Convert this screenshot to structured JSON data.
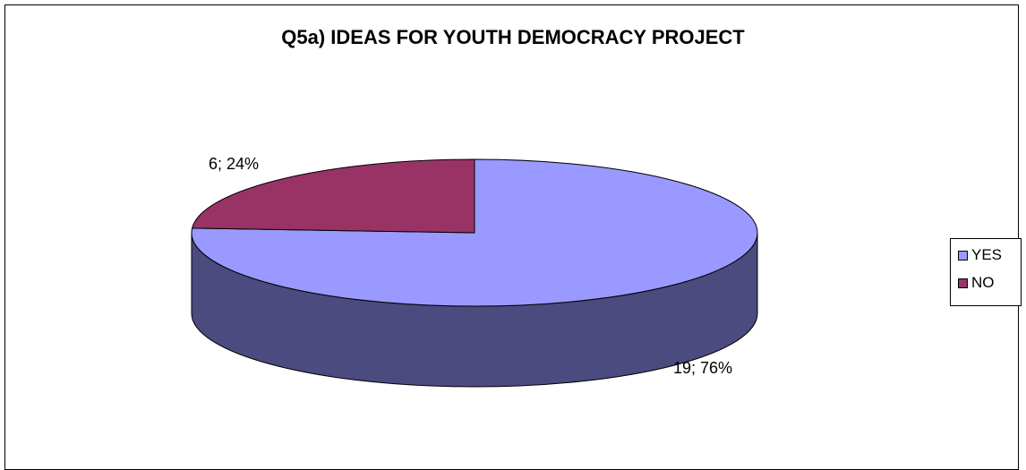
{
  "chart_data": {
    "type": "pie",
    "title": "Q5a) IDEAS FOR YOUTH DEMOCRACY PROJECT",
    "slices": [
      {
        "label": "YES",
        "value": 19,
        "percent": 76,
        "data_label": "19; 76%",
        "color": "#9999FF",
        "side_color": "#4B4B80"
      },
      {
        "label": "NO",
        "value": 6,
        "percent": 24,
        "data_label": "6; 24%",
        "color": "#993366",
        "side_color": "#4D1A33"
      }
    ],
    "legend": {
      "position": "right",
      "items": [
        "YES",
        "NO"
      ]
    },
    "style": "3d"
  }
}
